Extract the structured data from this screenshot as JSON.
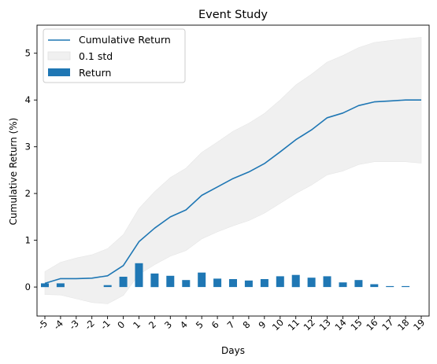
{
  "chart_data": {
    "type": "line",
    "title": "Event Study",
    "xlabel": "Days",
    "ylabel": "Cumulative Return (%)",
    "categories": [
      "-5",
      "-4",
      "-3",
      "-2",
      "-1",
      "0",
      "1",
      "2",
      "3",
      "4",
      "5",
      "6",
      "7",
      "8",
      "9",
      "10",
      "11",
      "12",
      "13",
      "14",
      "15",
      "16",
      "17",
      "18",
      "19"
    ],
    "ylim": [
      -0.62,
      5.6
    ],
    "yticks": [
      0,
      1,
      2,
      3,
      4,
      5
    ],
    "grid": false,
    "legend_position": "upper-left",
    "legend": {
      "line_label": "Cumulative Return",
      "band_label": "0.1 std",
      "bar_label": "Return"
    },
    "series": [
      {
        "name": "Cumulative Return",
        "kind": "line",
        "color": "#1f77b4",
        "values": [
          0.08,
          0.18,
          0.18,
          0.19,
          0.24,
          0.46,
          0.97,
          1.26,
          1.5,
          1.65,
          1.96,
          2.14,
          2.32,
          2.46,
          2.64,
          2.89,
          3.15,
          3.36,
          3.62,
          3.72,
          3.88,
          3.96,
          3.98,
          4.0,
          4.0
        ]
      },
      {
        "name": "0.1 std",
        "kind": "band",
        "color": "#f0f0f0",
        "upper": [
          0.33,
          0.53,
          0.62,
          0.69,
          0.82,
          1.12,
          1.68,
          2.04,
          2.34,
          2.54,
          2.88,
          3.1,
          3.33,
          3.5,
          3.71,
          4.0,
          4.32,
          4.55,
          4.81,
          4.95,
          5.12,
          5.23,
          5.27,
          5.31,
          5.34
        ],
        "lower": [
          -0.16,
          -0.17,
          -0.25,
          -0.33,
          -0.36,
          -0.18,
          0.27,
          0.48,
          0.66,
          0.78,
          1.03,
          1.18,
          1.31,
          1.42,
          1.58,
          1.79,
          2.0,
          2.18,
          2.4,
          2.48,
          2.62,
          2.68,
          2.68,
          2.68,
          2.65
        ]
      },
      {
        "name": "Return",
        "kind": "bar",
        "color": "#1f77b4",
        "values": [
          0.08,
          0.08,
          0.0,
          0.0,
          0.04,
          0.22,
          0.51,
          0.29,
          0.24,
          0.15,
          0.31,
          0.18,
          0.17,
          0.14,
          0.17,
          0.23,
          0.26,
          0.2,
          0.23,
          0.1,
          0.15,
          0.06,
          0.02,
          0.02,
          0.0
        ]
      }
    ]
  }
}
